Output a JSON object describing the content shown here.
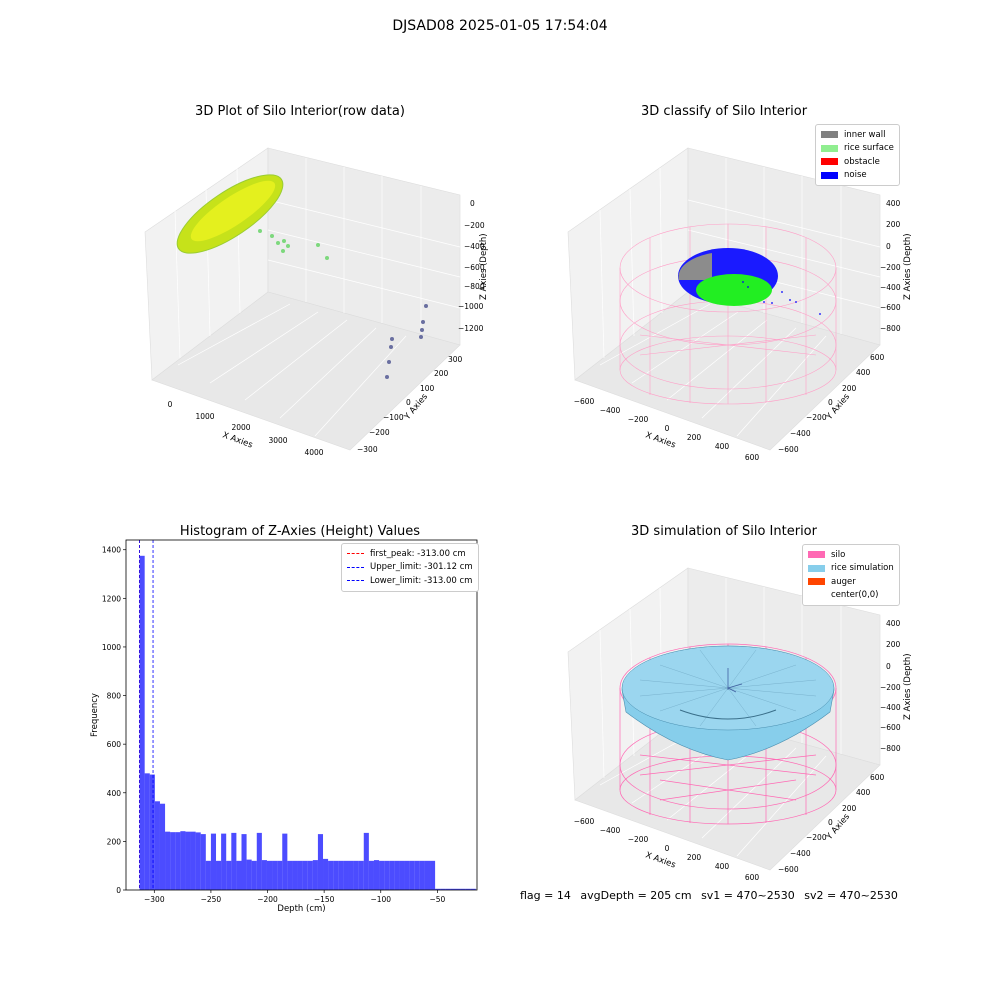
{
  "suptitle": "DJSAD08 2025-01-05 17:54:04",
  "panels": {
    "raw": {
      "title": "3D Plot of Silo Interior(row data)",
      "xlabel": "X Axies",
      "ylabel": "Y Axies",
      "zlabel": "Z Axies (Depth)",
      "xticks": [
        "0",
        "1000",
        "2000",
        "3000",
        "4000"
      ],
      "yticks": [
        "300",
        "200",
        "100",
        "0",
        "−100",
        "−200",
        "−300"
      ],
      "zticks": [
        "0",
        "−200",
        "−400",
        "−600",
        "−800",
        "−1000",
        "−1200"
      ]
    },
    "classify": {
      "title": "3D classify of Silo Interior",
      "xlabel": "X Axies",
      "ylabel": "Y Axies",
      "zlabel": "Z Axies (Depth)",
      "xticks": [
        "−600",
        "−400",
        "−200",
        "0",
        "200",
        "400",
        "600"
      ],
      "yticks": [
        "600",
        "400",
        "200",
        "0",
        "−200",
        "−400",
        "−600"
      ],
      "zticks": [
        "400",
        "200",
        "0",
        "−200",
        "−400",
        "−600",
        "−800"
      ],
      "legend": [
        {
          "label": "inner wall",
          "color": "#808080"
        },
        {
          "label": "rice surface",
          "color": "#90ee90"
        },
        {
          "label": "obstacle",
          "color": "#ff0000"
        },
        {
          "label": "noise",
          "color": "#0000ff"
        }
      ]
    },
    "simulation": {
      "title": "3D simulation of Silo Interior",
      "xlabel": "X Axies",
      "ylabel": "Y Axies",
      "zlabel": "Z Axies (Depth)",
      "xticks": [
        "−600",
        "−400",
        "−200",
        "0",
        "200",
        "400",
        "600"
      ],
      "yticks": [
        "600",
        "400",
        "200",
        "0",
        "−200",
        "−400",
        "−600"
      ],
      "zticks": [
        "400",
        "200",
        "0",
        "−200",
        "−400",
        "−600",
        "−800"
      ],
      "legend": [
        {
          "label": "silo",
          "color": "#ff69b4"
        },
        {
          "label": "rice simulation",
          "color": "#87ceeb"
        },
        {
          "label": "auger",
          "color": "#ff4500"
        },
        {
          "label": "center(0,0)",
          "color": "#ffffff"
        }
      ]
    }
  },
  "footer": {
    "flag": "flag = 14",
    "avgDepth": "avgDepth = 205 cm",
    "sv1": "sv1 = 470~2530",
    "sv2": "sv2 = 470~2530"
  },
  "chart_data": {
    "type": "bar",
    "title": "Histogram of Z-Axies (Height) Values",
    "xlabel": "Depth (cm)",
    "ylabel": "Frequency",
    "xlim": [
      -325,
      -15
    ],
    "ylim": [
      0,
      1440
    ],
    "xticks": [
      -300,
      -250,
      -200,
      -150,
      -100,
      -50
    ],
    "yticks": [
      0,
      200,
      400,
      600,
      800,
      1000,
      1200,
      1400
    ],
    "bin_width": 4.5,
    "bins_start": [
      -313,
      -308.5,
      -304,
      -299.5,
      -295,
      -290.5,
      -286,
      -281.5,
      -277,
      -272.5,
      -268,
      -263.5,
      -259,
      -254.5,
      -250,
      -245.5,
      -241,
      -236.5,
      -232,
      -227.5,
      -223,
      -218.5,
      -214,
      -209.5,
      -205,
      -200.5,
      -196,
      -191.5,
      -187,
      -182.5,
      -178,
      -173.5,
      -169,
      -164.5,
      -160,
      -155.5,
      -151,
      -146.5,
      -142,
      -137.5,
      -133,
      -128.5,
      -124,
      -119.5,
      -115,
      -110.5,
      -106,
      -101.5,
      -97,
      -92.5,
      -88,
      -83.5,
      -79,
      -74.5,
      -70,
      -65.5,
      -61,
      -56.5,
      -52,
      -47.5,
      -43,
      -38.5,
      -34,
      -29.5,
      -25,
      -20.5
    ],
    "values": [
      1375,
      480,
      475,
      365,
      355,
      240,
      238,
      238,
      242,
      240,
      240,
      237,
      230,
      120,
      232,
      120,
      232,
      120,
      235,
      120,
      230,
      125,
      120,
      235,
      123,
      120,
      120,
      120,
      232,
      120,
      120,
      120,
      120,
      120,
      123,
      230,
      128,
      120,
      120,
      120,
      120,
      120,
      120,
      120,
      235,
      120,
      123,
      120,
      120,
      120,
      120,
      120,
      120,
      120,
      120,
      120,
      120,
      120,
      5,
      5,
      5,
      5,
      5,
      5,
      5,
      5
    ],
    "series": [
      {
        "name": "",
        "color": "#0000ff",
        "opacity": 0.7
      }
    ],
    "vlines": [
      {
        "label": "first_peak: -313.00 cm",
        "value": -313.0,
        "color": "#ff0000"
      },
      {
        "label": "Upper_limit: -301.12 cm",
        "value": -301.12,
        "color": "#0000ff"
      },
      {
        "label": "Lower_limit: -313.00 cm",
        "value": -313.0,
        "color": "#0000ff"
      }
    ],
    "legend_position": "upper right"
  }
}
